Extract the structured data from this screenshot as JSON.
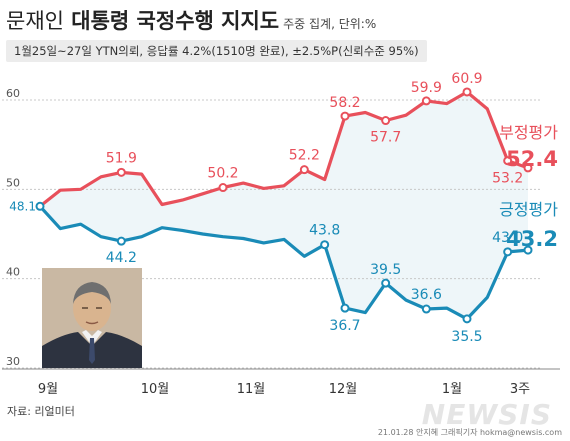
{
  "header": {
    "title_part1": "문재인",
    "title_part2": "대통령 국정수행 지지도",
    "title_part3": "주중 집계, 단위:%",
    "subtitle": "1월25일~27일 YTN의뢰, 응답률 4.2%(1510명 완료), ±2.5%P(신뢰수준 95%)"
  },
  "footer": {
    "source": "자료: 리얼미터",
    "credit": "21.01.28 안지혜 그래픽기자  hokma@newsis.com",
    "watermark": "NEWSIS"
  },
  "colors": {
    "negative": "#e8505b",
    "positive": "#1a8bb7",
    "band": "#eef6f9"
  },
  "chart_data": {
    "type": "line",
    "ylim": [
      30,
      63
    ],
    "yticks": [
      30,
      40,
      50,
      60
    ],
    "xticks": [
      "9월",
      "10월",
      "11월",
      "12월",
      "1월",
      "3주"
    ],
    "series": [
      {
        "name": "부정평가",
        "color": "#e8505b",
        "final_label": "52.4",
        "values": [
          48.1,
          49.9,
          50.0,
          51.4,
          51.9,
          51.7,
          48.3,
          48.8,
          49.5,
          50.2,
          50.7,
          50.1,
          50.4,
          52.2,
          51.1,
          58.2,
          58.6,
          57.7,
          58.3,
          59.9,
          59.6,
          60.9,
          59.0,
          53.2,
          52.4
        ],
        "labels": {
          "0": "48.1",
          "4": "51.9",
          "9": "50.2",
          "13": "52.2",
          "15": "58.2",
          "17": "57.7",
          "19": "59.9",
          "21": "60.9",
          "23": "53.2"
        }
      },
      {
        "name": "긍정평가",
        "color": "#1a8bb7",
        "final_label": "43.2",
        "values": [
          48.1,
          45.6,
          46.1,
          44.7,
          44.2,
          44.7,
          45.7,
          45.4,
          45.0,
          44.7,
          44.5,
          44.0,
          44.4,
          42.5,
          43.8,
          36.7,
          36.2,
          39.5,
          37.6,
          36.6,
          36.7,
          35.5,
          37.9,
          43.0,
          43.2
        ],
        "labels": {
          "4": "44.2",
          "14": "43.8",
          "15": "36.7",
          "17": "39.5",
          "19": "36.6",
          "21": "35.5",
          "23": "43.0"
        }
      }
    ]
  }
}
